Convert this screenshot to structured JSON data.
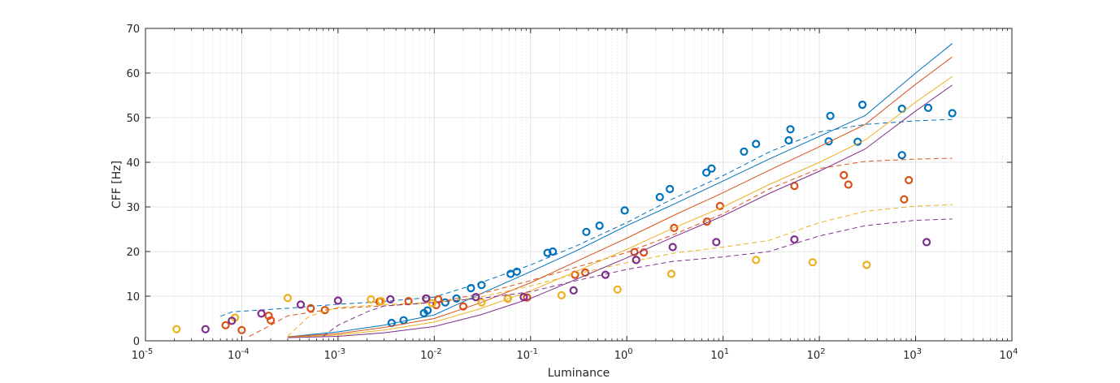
{
  "chart_data": {
    "type": "scatter",
    "xlabel": "Luminance",
    "ylabel": "CFF [Hz]",
    "xscale": "log",
    "xlim": [
      1e-05,
      10000
    ],
    "ylim": [
      0,
      70
    ],
    "x_tick_exponents": [
      -5,
      -4,
      -3,
      -2,
      -1,
      0,
      1,
      2,
      3,
      4
    ],
    "yticks": [
      0,
      10,
      20,
      30,
      40,
      50,
      60,
      70
    ],
    "grid": true,
    "legend": "none",
    "series": [
      {
        "color": "#0072BD",
        "points": [
          [
            0.0036,
            4.0
          ],
          [
            0.0048,
            4.6
          ],
          [
            0.0078,
            6.2
          ],
          [
            0.0085,
            6.8
          ],
          [
            0.013,
            8.6
          ],
          [
            0.017,
            9.5
          ],
          [
            0.024,
            11.8
          ],
          [
            0.031,
            12.5
          ],
          [
            0.062,
            15.0
          ],
          [
            0.072,
            15.5
          ],
          [
            0.15,
            19.7
          ],
          [
            0.17,
            20.0
          ],
          [
            0.38,
            24.4
          ],
          [
            0.52,
            25.8
          ],
          [
            0.95,
            29.2
          ],
          [
            2.2,
            32.2
          ],
          [
            2.8,
            34.0
          ],
          [
            6.7,
            37.7
          ],
          [
            7.6,
            38.6
          ],
          [
            16.5,
            42.4
          ],
          [
            22,
            44.1
          ],
          [
            48,
            44.9
          ],
          [
            50,
            47.4
          ],
          [
            125,
            44.7
          ],
          [
            130,
            50.4
          ],
          [
            250,
            44.6
          ],
          [
            280,
            52.9
          ],
          [
            720,
            41.6
          ],
          [
            720,
            52.0
          ],
          [
            1350,
            52.2
          ],
          [
            2400,
            51.0
          ]
        ],
        "fit_solid": [
          [
            0.0003,
            0.9
          ],
          [
            0.001,
            2.0
          ],
          [
            0.003,
            3.5
          ],
          [
            0.01,
            5.8
          ],
          [
            0.03,
            10.5
          ],
          [
            0.1,
            15.5
          ],
          [
            0.3,
            20.2
          ],
          [
            1,
            25.8
          ],
          [
            3,
            30.5
          ],
          [
            10,
            35.8
          ],
          [
            30,
            40.7
          ],
          [
            100,
            45.8
          ],
          [
            300,
            50.5
          ],
          [
            1000,
            60.0
          ],
          [
            2400,
            66.6
          ]
        ],
        "fit_dashed": [
          [
            6e-05,
            5.5
          ],
          [
            8e-05,
            6.5
          ],
          [
            0.0003,
            7.3
          ],
          [
            0.001,
            8.2
          ],
          [
            0.003,
            8.8
          ],
          [
            0.01,
            9.8
          ],
          [
            0.03,
            13.0
          ],
          [
            0.1,
            17.0
          ],
          [
            0.3,
            21.3
          ],
          [
            1,
            26.5
          ],
          [
            3,
            31.8
          ],
          [
            10,
            37.0
          ],
          [
            30,
            42.3
          ],
          [
            100,
            46.8
          ],
          [
            300,
            48.5
          ],
          [
            1000,
            49.3
          ],
          [
            2400,
            49.6
          ]
        ]
      },
      {
        "color": "#D95319",
        "points": [
          [
            6.8e-05,
            3.5
          ],
          [
            0.0001,
            2.4
          ],
          [
            0.00019,
            5.6
          ],
          [
            0.0002,
            4.6
          ],
          [
            0.00052,
            7.3
          ],
          [
            0.00073,
            6.9
          ],
          [
            0.0027,
            8.8
          ],
          [
            0.0054,
            8.9
          ],
          [
            0.0083,
            9.5
          ],
          [
            0.0105,
            8.0
          ],
          [
            0.011,
            9.3
          ],
          [
            0.02,
            7.7
          ],
          [
            0.058,
            9.5
          ],
          [
            0.092,
            9.7
          ],
          [
            0.29,
            14.8
          ],
          [
            0.37,
            15.3
          ],
          [
            1.2,
            19.9
          ],
          [
            1.5,
            19.8
          ],
          [
            3.1,
            25.3
          ],
          [
            6.8,
            26.7
          ],
          [
            9.3,
            30.2
          ],
          [
            55,
            34.7
          ],
          [
            180,
            37.1
          ],
          [
            200,
            35.0
          ],
          [
            760,
            31.7
          ],
          [
            850,
            36.0
          ]
        ],
        "fit_solid": [
          [
            0.0003,
            0.9
          ],
          [
            0.001,
            1.6
          ],
          [
            0.003,
            3.0
          ],
          [
            0.01,
            5.0
          ],
          [
            0.03,
            8.5
          ],
          [
            0.1,
            13.0
          ],
          [
            0.3,
            17.8
          ],
          [
            1,
            23.0
          ],
          [
            3,
            28.0
          ],
          [
            10,
            33.2
          ],
          [
            30,
            38.2
          ],
          [
            100,
            43.5
          ],
          [
            300,
            48.5
          ],
          [
            1000,
            57.5
          ],
          [
            2400,
            63.6
          ]
        ],
        "fit_dashed": [
          [
            0.00012,
            1.0
          ],
          [
            0.0002,
            3.5
          ],
          [
            0.0003,
            5.6
          ],
          [
            0.001,
            7.3
          ],
          [
            0.003,
            7.8
          ],
          [
            0.01,
            8.6
          ],
          [
            0.03,
            10.5
          ],
          [
            0.1,
            13.5
          ],
          [
            0.3,
            16.5
          ],
          [
            1,
            19.8
          ],
          [
            3,
            23.7
          ],
          [
            10,
            28.5
          ],
          [
            30,
            34.0
          ],
          [
            100,
            38.6
          ],
          [
            300,
            40.2
          ],
          [
            1000,
            40.7
          ],
          [
            2400,
            40.9
          ]
        ]
      },
      {
        "color": "#EDB120",
        "points": [
          [
            2.1e-05,
            2.6
          ],
          [
            8.5e-05,
            5.2
          ],
          [
            0.0003,
            9.6
          ],
          [
            0.0022,
            9.3
          ],
          [
            0.0028,
            8.9
          ],
          [
            0.0095,
            8.4
          ],
          [
            0.031,
            8.6
          ],
          [
            0.058,
            9.4
          ],
          [
            0.21,
            10.2
          ],
          [
            0.8,
            11.5
          ],
          [
            2.9,
            15.0
          ],
          [
            22,
            18.1
          ],
          [
            85,
            17.6
          ],
          [
            310,
            17.0
          ]
        ],
        "fit_solid": [
          [
            0.0003,
            0.8
          ],
          [
            0.001,
            1.3
          ],
          [
            0.003,
            2.4
          ],
          [
            0.01,
            4.2
          ],
          [
            0.03,
            7.2
          ],
          [
            0.1,
            11.2
          ],
          [
            0.3,
            15.6
          ],
          [
            1,
            20.5
          ],
          [
            3,
            25.2
          ],
          [
            10,
            30.0
          ],
          [
            30,
            35.0
          ],
          [
            100,
            40.0
          ],
          [
            300,
            45.0
          ],
          [
            1000,
            53.5
          ],
          [
            2400,
            59.2
          ]
        ],
        "fit_dashed": [
          [
            0.0003,
            1.0
          ],
          [
            0.0005,
            5.5
          ],
          [
            0.001,
            7.5
          ],
          [
            0.003,
            8.1
          ],
          [
            0.01,
            8.6
          ],
          [
            0.03,
            9.8
          ],
          [
            0.1,
            12.3
          ],
          [
            0.3,
            15.0
          ],
          [
            1,
            17.5
          ],
          [
            3,
            19.6
          ],
          [
            10,
            21.0
          ],
          [
            30,
            22.5
          ],
          [
            100,
            26.5
          ],
          [
            300,
            29.0
          ],
          [
            1000,
            30.2
          ],
          [
            2400,
            30.5
          ]
        ]
      },
      {
        "color": "#7E2F8E",
        "points": [
          [
            4.2e-05,
            2.6
          ],
          [
            7.9e-05,
            4.5
          ],
          [
            0.00016,
            6.1
          ],
          [
            0.00041,
            8.1
          ],
          [
            0.001,
            9.0
          ],
          [
            0.0035,
            9.3
          ],
          [
            0.0082,
            9.5
          ],
          [
            0.027,
            9.8
          ],
          [
            0.085,
            9.8
          ],
          [
            0.28,
            11.3
          ],
          [
            0.6,
            14.8
          ],
          [
            1.25,
            18.1
          ],
          [
            3.0,
            21.0
          ],
          [
            8.5,
            22.1
          ],
          [
            55,
            22.7
          ],
          [
            1300,
            22.1
          ]
        ],
        "fit_solid": [
          [
            0.0003,
            0.7
          ],
          [
            0.001,
            1.0
          ],
          [
            0.003,
            1.8
          ],
          [
            0.01,
            3.2
          ],
          [
            0.03,
            5.8
          ],
          [
            0.1,
            9.5
          ],
          [
            0.3,
            13.8
          ],
          [
            1,
            18.6
          ],
          [
            3,
            23.2
          ],
          [
            10,
            28.0
          ],
          [
            30,
            33.0
          ],
          [
            100,
            38.0
          ],
          [
            300,
            43.0
          ],
          [
            1000,
            51.5
          ],
          [
            2400,
            57.3
          ]
        ],
        "fit_dashed": [
          [
            0.0007,
            1.0
          ],
          [
            0.001,
            3.5
          ],
          [
            0.002,
            6.5
          ],
          [
            0.003,
            7.8
          ],
          [
            0.01,
            8.6
          ],
          [
            0.03,
            9.5
          ],
          [
            0.1,
            11.0
          ],
          [
            0.3,
            13.5
          ],
          [
            1,
            16.0
          ],
          [
            3,
            17.8
          ],
          [
            10,
            18.8
          ],
          [
            30,
            20.0
          ],
          [
            100,
            23.5
          ],
          [
            300,
            25.8
          ],
          [
            1000,
            27.0
          ],
          [
            2400,
            27.3
          ]
        ]
      }
    ]
  }
}
